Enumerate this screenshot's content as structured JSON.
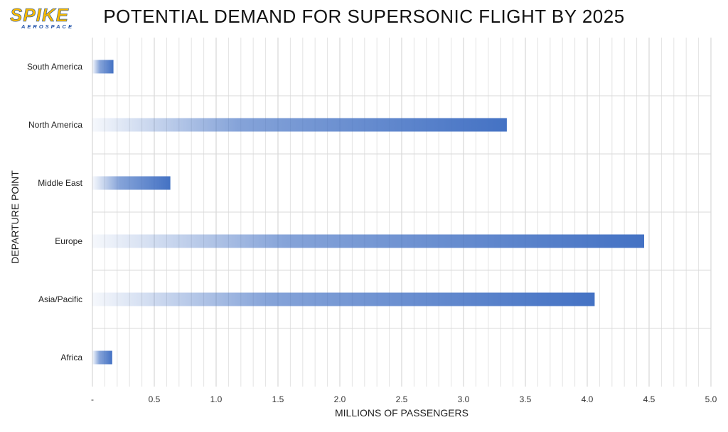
{
  "logo": {
    "word": "SPIKE",
    "sub": "AEROSPACE"
  },
  "chart_data": {
    "type": "bar",
    "orientation": "horizontal",
    "title": "POTENTIAL DEMAND FOR SUPERSONIC FLIGHT BY 2025",
    "xlabel": "MILLIONS OF PASSENGERS",
    "ylabel": "DEPARTURE POINT",
    "categories": [
      "South America",
      "North America",
      "Middle East",
      "Europe",
      "Asia/Pacific",
      "Africa"
    ],
    "values": [
      0.17,
      3.35,
      0.63,
      4.46,
      4.06,
      0.16
    ],
    "xlim": [
      0,
      5.0
    ],
    "x_tick_labels": [
      "-",
      "0.5",
      "1.0",
      "1.5",
      "2.0",
      "2.5",
      "3.0",
      "3.5",
      "4.0",
      "4.5",
      "5.0"
    ],
    "grid": true,
    "bar_color": "#4472c4",
    "gradient": "light-to-dark left to right"
  }
}
